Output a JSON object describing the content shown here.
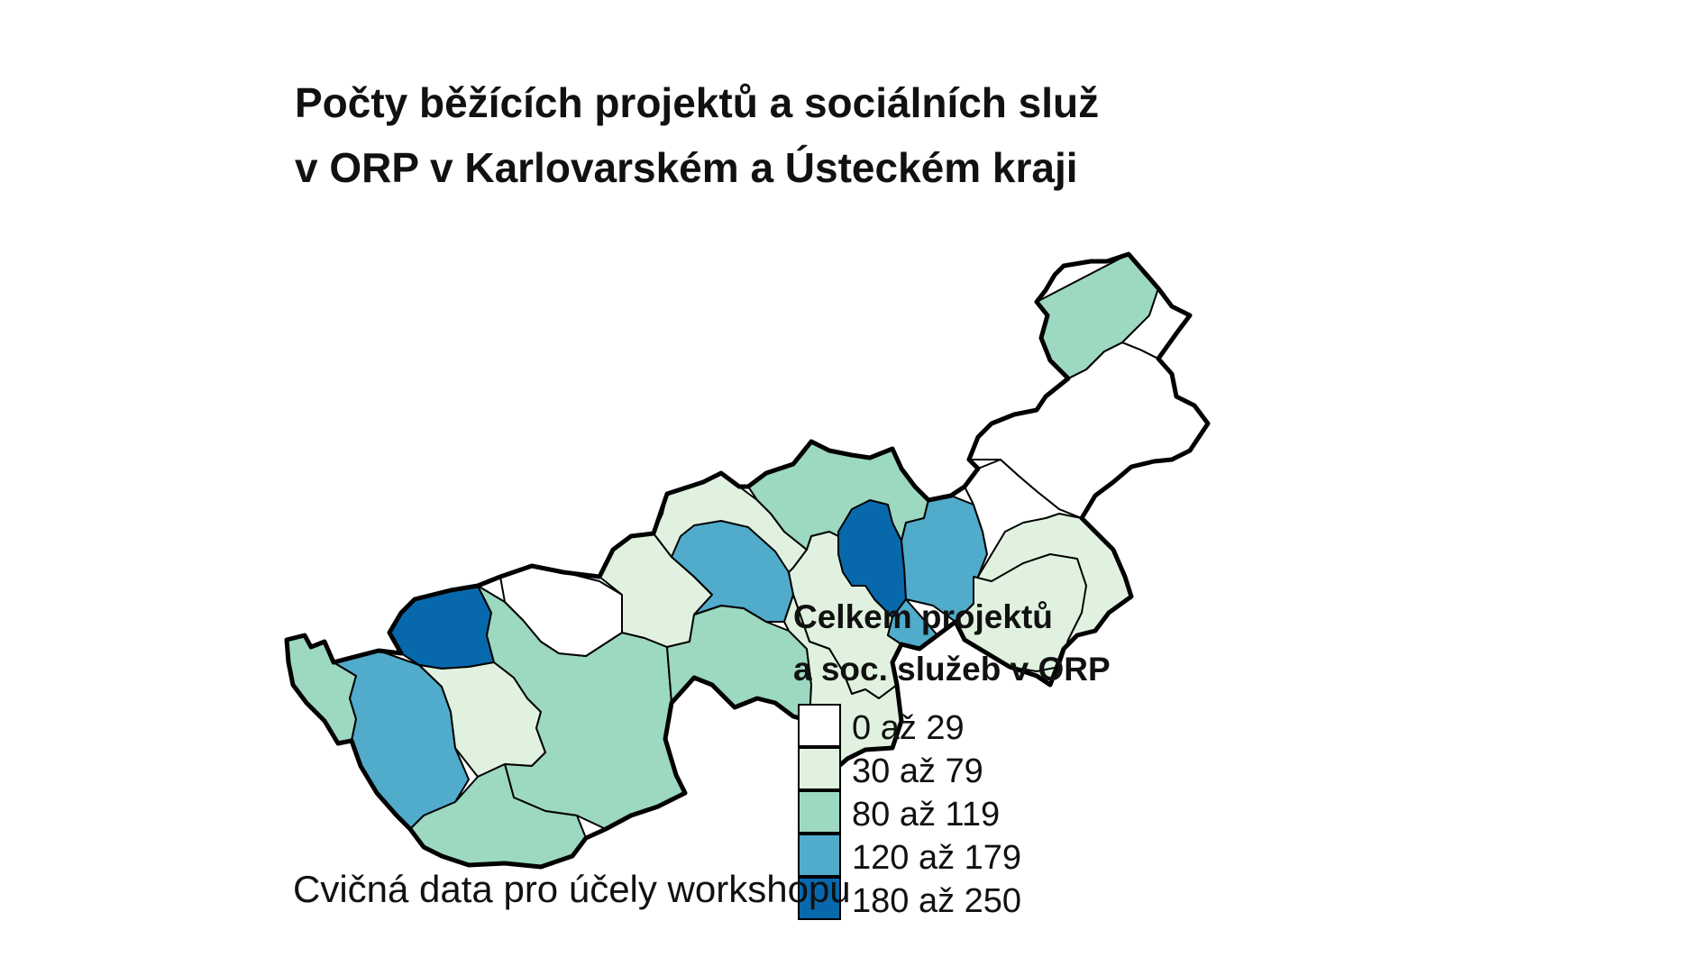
{
  "title_line1": "Počty běžících projektů a sociálních služ",
  "title_line2": "v ORP v Karlovarském a Ústeckém kraji",
  "legend": {
    "title_line1": "Celkem projektů",
    "title_line2": "a soc. služeb v ORP",
    "classes": [
      {
        "label": "0 až 29",
        "color": "#ffffff"
      },
      {
        "label": "30 až 79",
        "color": "#e0f2df"
      },
      {
        "label": "80 až 119",
        "color": "#9dd8c0"
      },
      {
        "label": "120 až 179",
        "color": "#51abca"
      },
      {
        "label": "180 až 250",
        "color": "#0868ac"
      }
    ]
  },
  "caption": "Cvičná data pro účely workshopu",
  "regions": [
    {
      "class": 2
    },
    {
      "class": 3
    },
    {
      "class": 4
    },
    {
      "class": 1
    },
    {
      "class": 2
    },
    {
      "class": 0
    },
    {
      "class": 1
    },
    {
      "class": 2
    },
    {
      "class": 2
    },
    {
      "class": 1
    },
    {
      "class": 3
    },
    {
      "class": 2
    },
    {
      "class": 1
    },
    {
      "class": 4
    },
    {
      "class": 1
    },
    {
      "class": 3
    },
    {
      "class": 0
    },
    {
      "class": 1
    },
    {
      "class": 1
    },
    {
      "class": 0
    },
    {
      "class": 0
    },
    {
      "class": 2
    },
    {
      "class": 0
    }
  ]
}
